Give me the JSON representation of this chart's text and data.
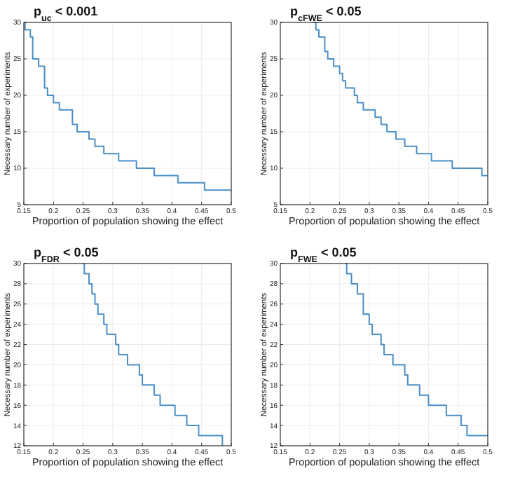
{
  "chart_data": [
    {
      "type": "step",
      "title": "p$_{uc}$ < 0.001",
      "xlabel": "Proportion of population showing the effect",
      "ylabel": "Necessary number of experiments",
      "xlim": [
        0.15,
        0.5
      ],
      "ylim": [
        5,
        30
      ],
      "xticks": [
        0.15,
        0.2,
        0.25,
        0.3,
        0.35,
        0.4,
        0.45,
        0.5
      ],
      "yticks": [
        5,
        10,
        15,
        20,
        25,
        30
      ],
      "grid": true,
      "series": [
        {
          "color": "#4a8fc7",
          "x": [
            0.15,
            0.152,
            0.161,
            0.165,
            0.175,
            0.185,
            0.19,
            0.2,
            0.21,
            0.232,
            0.24,
            0.26,
            0.27,
            0.285,
            0.31,
            0.34,
            0.37,
            0.41,
            0.455,
            0.5
          ],
          "values": [
            30,
            29,
            28,
            25,
            24,
            21,
            20,
            19,
            18,
            16,
            15,
            14,
            13,
            12,
            11,
            10,
            9,
            8,
            7,
            7
          ]
        }
      ]
    },
    {
      "type": "step",
      "title": "p$_{cFWE}$ < 0.05",
      "xlabel": "Proportion of population showing the effect",
      "ylabel": "Necessary number of experiments",
      "xlim": [
        0.15,
        0.5
      ],
      "ylim": [
        5,
        30
      ],
      "xticks": [
        0.15,
        0.2,
        0.25,
        0.3,
        0.35,
        0.4,
        0.45,
        0.5
      ],
      "yticks": [
        5,
        10,
        15,
        20,
        25,
        30
      ],
      "grid": true,
      "series": [
        {
          "color": "#4a8fc7",
          "x": [
            0.205,
            0.21,
            0.215,
            0.225,
            0.23,
            0.24,
            0.25,
            0.255,
            0.26,
            0.275,
            0.28,
            0.29,
            0.31,
            0.32,
            0.33,
            0.345,
            0.36,
            0.38,
            0.405,
            0.44,
            0.49,
            0.5
          ],
          "values": [
            30,
            29,
            28,
            26,
            25,
            24,
            23,
            22,
            21,
            20,
            19,
            18,
            17,
            16,
            15,
            14,
            13,
            12,
            11,
            10,
            9,
            9
          ]
        }
      ]
    },
    {
      "type": "step",
      "title": "p$_{FDR}$ < 0.05",
      "xlabel": "Proportion of population showing the effect",
      "ylabel": "Necessary number of experiments",
      "xlim": [
        0.15,
        0.5
      ],
      "ylim": [
        12,
        30
      ],
      "xticks": [
        0.15,
        0.2,
        0.25,
        0.3,
        0.35,
        0.4,
        0.45,
        0.5
      ],
      "yticks": [
        12,
        14,
        16,
        18,
        20,
        22,
        24,
        26,
        28,
        30
      ],
      "grid": true,
      "series": [
        {
          "color": "#4a8fc7",
          "x": [
            0.25,
            0.252,
            0.26,
            0.265,
            0.27,
            0.275,
            0.285,
            0.29,
            0.305,
            0.31,
            0.325,
            0.345,
            0.35,
            0.37,
            0.38,
            0.405,
            0.425,
            0.445,
            0.485
          ],
          "values": [
            30,
            29,
            28,
            27,
            26,
            25,
            24,
            23,
            22,
            21,
            20,
            19,
            18,
            17,
            16,
            15,
            14,
            13,
            12
          ]
        }
      ]
    },
    {
      "type": "step",
      "title": "p$_{FWE}$ < 0.05",
      "xlabel": "Proportion of population showing the effect",
      "ylabel": "Necessary number of experiments",
      "xlim": [
        0.15,
        0.5
      ],
      "ylim": [
        12,
        30
      ],
      "xticks": [
        0.15,
        0.2,
        0.25,
        0.3,
        0.35,
        0.4,
        0.45,
        0.5
      ],
      "yticks": [
        12,
        14,
        16,
        18,
        20,
        22,
        24,
        26,
        28,
        30
      ],
      "grid": true,
      "series": [
        {
          "color": "#4a8fc7",
          "x": [
            0.26,
            0.262,
            0.27,
            0.28,
            0.29,
            0.3,
            0.305,
            0.32,
            0.325,
            0.34,
            0.36,
            0.365,
            0.385,
            0.4,
            0.43,
            0.455,
            0.465,
            0.5
          ],
          "values": [
            30,
            29,
            28,
            27,
            25,
            24,
            23,
            22,
            21,
            20,
            19,
            18,
            17,
            16,
            15,
            14,
            13,
            13
          ]
        }
      ]
    }
  ]
}
